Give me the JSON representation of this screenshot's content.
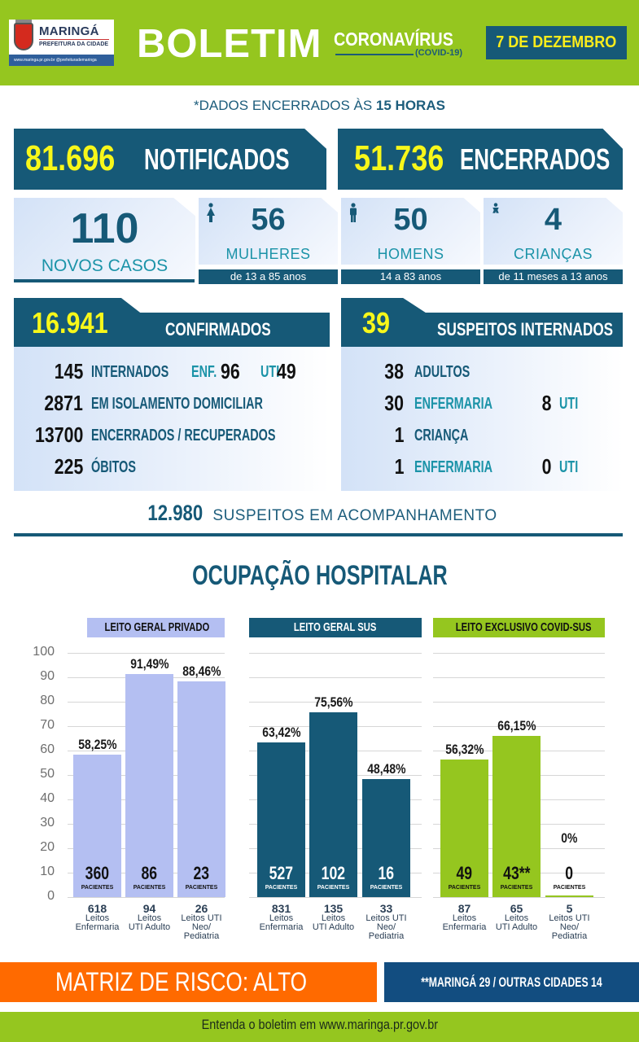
{
  "header": {
    "logo_name": "MARINGÁ",
    "logo_subtitle": "PREFEITURA DA CIDADE",
    "logo_social": "www.maringa.pr.gov.br  @prefeiturademaringa",
    "title": "BOLETIM",
    "subtitle": "CORONAVÍRUS",
    "subtitle_tag": "(COVID-19)",
    "date": "7 DE DEZEMBRO"
  },
  "closed_note": {
    "prefix": "*DADOS ENCERRADOS ÀS ",
    "bold": "15 HORAS"
  },
  "totals": {
    "notified": {
      "value": "81.696",
      "label": "NOTIFICADOS"
    },
    "closed": {
      "value": "51.736",
      "label": "ENCERRADOS"
    }
  },
  "new_cases": {
    "total": {
      "value": "110",
      "label": "NOVOS CASOS"
    },
    "women": {
      "icon": "woman-icon",
      "value": "56",
      "label": "MULHERES",
      "range": "de 13 a 85 anos"
    },
    "men": {
      "icon": "man-icon",
      "value": "50",
      "label": "HOMENS",
      "range": "14 a 83 anos"
    },
    "children": {
      "icon": "baby-icon",
      "value": "4",
      "label": "CRIANÇAS",
      "range": "de 11 meses a 13 anos"
    }
  },
  "confirmed": {
    "value": "16.941",
    "label": "CONFIRMADOS",
    "rows": [
      {
        "value": "145",
        "label": "INTERNADOS",
        "enf_label": "ENF.",
        "enf_value": "96",
        "uti_label": "UTI",
        "uti_value": "49"
      },
      {
        "value": "2871",
        "label": "EM ISOLAMENTO DOMICILIAR"
      },
      {
        "value": "13700",
        "label": "ENCERRADOS / RECUPERADOS"
      },
      {
        "value": "225",
        "label": "ÓBITOS"
      }
    ]
  },
  "suspects_hospitalized": {
    "value": "39",
    "label": "SUSPEITOS INTERNADOS",
    "rows": [
      {
        "value": "38",
        "label": "ADULTOS"
      },
      {
        "value": "30",
        "label": "ENFERMARIA",
        "uti_value": "8",
        "uti_label": "UTI"
      },
      {
        "value": "1",
        "label": "CRIANÇA"
      },
      {
        "value": "1",
        "label": "ENFERMARIA",
        "uti_value": "0",
        "uti_label": "UTI"
      }
    ]
  },
  "suspects_followup": {
    "value": "12.980",
    "label": "SUSPEITOS EM ACOMPANHAMENTO"
  },
  "occupancy_title": "OCUPAÇÃO HOSPITALAR",
  "colors": {
    "green": "#95c61f",
    "navy": "#165977",
    "yellow": "#f7f71a",
    "lavender": "#b4bff2",
    "orange": "#ff6a00",
    "teal": "#1b93a8"
  },
  "chart_data": [
    {
      "type": "bar",
      "title": "LEITO GERAL PRIVADO",
      "categories": [
        "Leitos Enfermaria",
        "Leitos UTI Adulto",
        "Leitos UTI Neo/ Pediatria"
      ],
      "values": [
        58.25,
        91.49,
        88.46
      ],
      "value_labels": [
        "58,25%",
        "91,49%",
        "88,46%"
      ],
      "patients": [
        "360",
        "86",
        "23"
      ],
      "beds": [
        "618",
        "94",
        "26"
      ],
      "color": "#b4bff2",
      "ylim": [
        0,
        100
      ],
      "yticks": [
        0,
        10,
        20,
        30,
        40,
        50,
        60,
        70,
        80,
        90,
        100
      ],
      "grid": true
    },
    {
      "type": "bar",
      "title": "LEITO GERAL SUS",
      "categories": [
        "Leitos Enfermaria",
        "Leitos UTI Adulto",
        "Leitos UTI Neo/ Pediatria"
      ],
      "values": [
        63.42,
        75.56,
        48.48
      ],
      "value_labels": [
        "63,42%",
        "75,56%",
        "48,48%"
      ],
      "patients": [
        "527",
        "102",
        "16"
      ],
      "beds": [
        "831",
        "135",
        "33"
      ],
      "color": "#165977",
      "ylim": [
        0,
        100
      ],
      "grid": true
    },
    {
      "type": "bar",
      "title": "LEITO EXCLUSIVO COVID-SUS",
      "categories": [
        "Leitos Enfermaria",
        "Leitos UTI Adulto",
        "Leitos UTI Neo/ Pediatria"
      ],
      "values": [
        56.32,
        66.15,
        0
      ],
      "value_labels": [
        "56,32%",
        "66,15%",
        "0%"
      ],
      "patients": [
        "49",
        "43**",
        "0"
      ],
      "beds": [
        "87",
        "65",
        "5"
      ],
      "color": "#95c61f",
      "ylim": [
        0,
        100
      ],
      "grid": true
    }
  ],
  "chart_common": {
    "patients_label": "PACIENTES",
    "cat_line1": [
      "Leitos",
      "Leitos",
      "Leitos UTI"
    ],
    "cat_line2": [
      "Enfermaria",
      "UTI Adulto",
      "Neo/"
    ],
    "cat_line3": [
      "",
      "",
      "Pediatria"
    ]
  },
  "risk": {
    "label": "MATRIZ DE RISCO: ALTO",
    "note": "**MARINGÁ 29 / OUTRAS CIDADES 14"
  },
  "footer": {
    "text": "Entenda o boletim em www.maringa.pr.gov.br"
  }
}
